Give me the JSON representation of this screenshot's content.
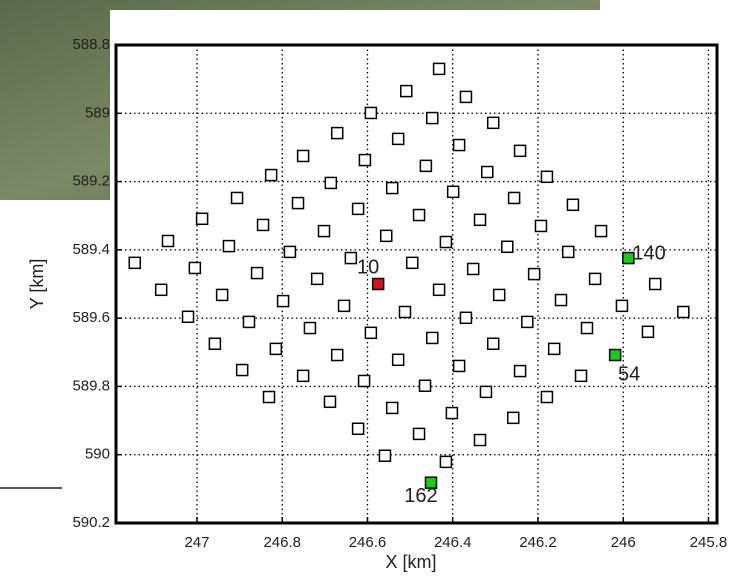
{
  "chart_data": {
    "type": "scatter",
    "xlabel": "X [km]",
    "ylabel": "Y [km]",
    "xlim": [
      247.19,
      245.78
    ],
    "ylim": [
      590.2,
      588.8
    ],
    "xticks": [
      247,
      246.8,
      246.6,
      246.4,
      246.2,
      246,
      245.8
    ],
    "yticks": [
      588.8,
      589,
      589.2,
      589.4,
      589.6,
      589.8,
      590,
      590.2
    ],
    "grid": true,
    "series": [
      {
        "color": "#000000",
        "x": [
          246.432,
          246.509,
          246.369,
          246.592,
          246.448,
          246.305,
          246.671,
          246.528,
          246.385,
          246.242,
          246.751,
          246.606,
          246.463,
          246.319,
          246.179,
          246.826,
          246.686,
          246.542,
          246.399,
          246.256,
          246.906,
          246.763,
          246.622,
          246.479,
          246.336,
          246.193,
          246.118,
          246.988,
          246.845,
          246.702,
          246.556,
          246.416,
          246.272,
          246.129,
          246.052,
          247.068,
          246.925,
          246.782,
          246.639,
          246.495,
          246.352,
          246.209,
          246.066,
          247.146,
          247.005,
          246.859,
          246.718,
          246.432,
          246.291,
          246.146,
          246.003,
          245.925,
          247.084,
          246.941,
          246.798,
          246.655,
          246.512,
          246.369,
          246.225,
          246.085,
          245.859,
          247.021,
          246.878,
          246.735,
          246.592,
          246.448,
          246.305,
          246.162,
          245.942,
          246.958,
          246.815,
          246.671,
          246.528,
          246.385,
          246.242,
          246.099,
          246.894,
          246.751,
          246.608,
          246.465,
          246.322,
          246.179,
          246.831,
          246.688,
          246.542,
          246.402,
          246.258,
          246.622,
          246.479,
          246.336,
          246.559,
          246.416
        ],
        "y": [
          588.87,
          588.935,
          588.952,
          588.999,
          589.014,
          589.028,
          589.058,
          589.075,
          589.093,
          589.11,
          589.125,
          589.137,
          589.154,
          589.172,
          589.186,
          589.181,
          589.204,
          589.219,
          589.23,
          589.248,
          589.248,
          589.263,
          589.28,
          589.298,
          589.312,
          589.33,
          589.268,
          589.309,
          589.327,
          589.345,
          589.359,
          589.377,
          589.391,
          589.406,
          589.345,
          589.374,
          589.389,
          589.406,
          589.424,
          589.438,
          589.456,
          589.471,
          589.485,
          589.438,
          589.453,
          589.468,
          589.485,
          589.517,
          589.532,
          589.547,
          589.564,
          589.5,
          589.517,
          589.532,
          589.55,
          589.564,
          589.582,
          589.599,
          589.611,
          589.629,
          589.582,
          589.596,
          589.611,
          589.629,
          589.643,
          589.658,
          589.675,
          589.69,
          589.64,
          589.675,
          589.69,
          589.708,
          589.722,
          589.74,
          589.755,
          589.769,
          589.752,
          589.769,
          589.784,
          589.798,
          589.816,
          589.831,
          589.831,
          589.845,
          589.863,
          589.878,
          589.892,
          589.924,
          589.939,
          589.957,
          590.003,
          590.021
        ]
      }
    ],
    "highlights": [
      {
        "label": "10",
        "color": "#e01010",
        "x": 246.575,
        "y": 589.5
      },
      {
        "label": "140",
        "color": "#10d010",
        "x": 245.988,
        "y": 589.424
      },
      {
        "label": "54",
        "color": "#10d010",
        "x": 246.019,
        "y": 589.708
      },
      {
        "label": "162",
        "color": "#10d010",
        "x": 246.451,
        "y": 590.082
      }
    ]
  }
}
